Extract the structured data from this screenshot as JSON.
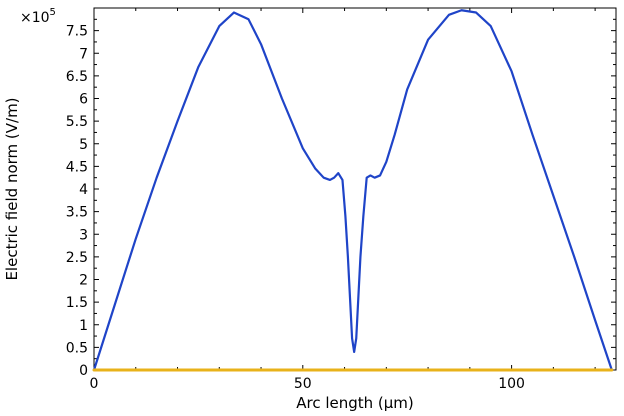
{
  "chart_data": {
    "type": "line",
    "xlabel": "Arc length (µm)",
    "ylabel": "Electric field norm (V/m)",
    "y_multiplier": "×10",
    "y_multiplier_exponent": "5",
    "xlim": [
      0,
      125
    ],
    "ylim": [
      0,
      8.0
    ],
    "x_ticks": [
      0,
      50,
      100
    ],
    "x_tick_labels": [
      "0",
      "50",
      "100"
    ],
    "y_ticks": [
      0,
      0.5,
      1,
      1.5,
      2,
      2.5,
      3,
      3.5,
      4,
      4.5,
      5,
      5.5,
      6,
      6.5,
      7,
      7.5
    ],
    "y_tick_labels": [
      "0",
      "0.5",
      "1",
      "1.5",
      "2",
      "2.5",
      "3",
      "3.5",
      "4",
      "4.5",
      "5",
      "5.5",
      "6",
      "6.5",
      "7",
      "7.5"
    ],
    "grid": false,
    "legend": "none",
    "series": [
      {
        "color": "#1f44c8",
        "x": [
          0,
          5,
          10,
          15,
          20,
          25,
          30,
          33.5,
          37,
          40,
          45,
          50,
          53,
          55,
          56.5,
          57.5,
          58.5,
          59.5,
          60.2,
          60.8,
          61.3,
          61.8,
          62.3,
          62.8,
          63.3,
          63.8,
          64.5,
          65.3,
          66.2,
          67.2,
          68.5,
          70,
          72,
          75,
          80,
          85,
          88,
          91.5,
          95,
          100,
          105,
          110,
          115,
          120,
          124
        ],
        "y": [
          0,
          1.45,
          2.9,
          4.25,
          5.5,
          6.7,
          7.6,
          7.9,
          7.75,
          7.2,
          6.0,
          4.9,
          4.45,
          4.25,
          4.2,
          4.25,
          4.35,
          4.2,
          3.4,
          2.5,
          1.6,
          0.7,
          0.4,
          0.7,
          1.6,
          2.5,
          3.4,
          4.25,
          4.3,
          4.25,
          4.3,
          4.6,
          5.2,
          6.2,
          7.3,
          7.85,
          7.95,
          7.9,
          7.6,
          6.6,
          5.2,
          3.85,
          2.5,
          1.1,
          0
        ]
      },
      {
        "color": "#e8b21a",
        "x": [
          0,
          124
        ],
        "y": [
          0,
          0
        ]
      }
    ]
  }
}
